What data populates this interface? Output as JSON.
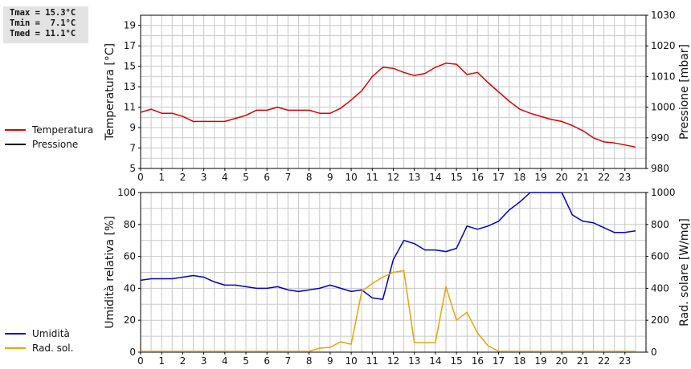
{
  "stats": {
    "tmax": "Tmax = 15.3°C",
    "tmin": "Tmin =  7.1°C",
    "tmed": "Tmed = 11.1°C"
  },
  "colors": {
    "temperatura": "#dd0000",
    "pressione": "#000000",
    "umidita": "#0000cc",
    "rad_sol": "#f0a000",
    "grid": "#c8c8c8"
  },
  "chart_data": [
    {
      "type": "line",
      "xlim": [
        0,
        24
      ],
      "x_ticks": [
        "0",
        "1",
        "2",
        "3",
        "4",
        "5",
        "6",
        "7",
        "8",
        "9",
        "10",
        "11",
        "12",
        "13",
        "14",
        "15",
        "16",
        "17",
        "18",
        "19",
        "20",
        "21",
        "22",
        "23"
      ],
      "ylabel": "Temperatura [°C]",
      "ylim": [
        5,
        20
      ],
      "y_ticks": [
        "5",
        "7",
        "9",
        "11",
        "13",
        "15",
        "17",
        "19"
      ],
      "y2label": "Pressione [mbar]",
      "y2lim": [
        980,
        1030
      ],
      "y2_ticks": [
        "980",
        "990",
        "1000",
        "1010",
        "1020",
        "1030"
      ],
      "grid": true,
      "legend_position": "left",
      "series": [
        {
          "name": "Temperatura",
          "axis": "left",
          "x": [
            0,
            0.5,
            1,
            1.5,
            2,
            2.5,
            3,
            3.5,
            4,
            4.5,
            5,
            5.5,
            6,
            6.5,
            7,
            7.5,
            8,
            8.5,
            9,
            9.5,
            10,
            10.5,
            11,
            11.5,
            12,
            12.5,
            13,
            13.5,
            14,
            14.5,
            15,
            15.5,
            16,
            16.5,
            17,
            17.5,
            18,
            18.5,
            19,
            19.5,
            20,
            20.5,
            21,
            21.5,
            22,
            22.5,
            23,
            23.5
          ],
          "y": [
            10.5,
            10.8,
            10.4,
            10.4,
            10.1,
            9.6,
            9.6,
            9.6,
            9.6,
            9.9,
            10.2,
            10.7,
            10.7,
            11.0,
            10.7,
            10.7,
            10.7,
            10.4,
            10.4,
            10.9,
            11.7,
            12.6,
            14.0,
            14.9,
            14.8,
            14.4,
            14.1,
            14.3,
            14.9,
            15.3,
            15.2,
            14.2,
            14.4,
            13.4,
            12.5,
            11.6,
            10.8,
            10.4,
            10.1,
            9.8,
            9.6,
            9.2,
            8.7,
            8.0,
            7.6,
            7.5,
            7.3,
            7.1
          ]
        },
        {
          "name": "Pressione",
          "axis": "right",
          "x": [],
          "y": []
        }
      ]
    },
    {
      "type": "line",
      "xlim": [
        0,
        24
      ],
      "x_ticks": [
        "0",
        "1",
        "2",
        "3",
        "4",
        "5",
        "6",
        "7",
        "8",
        "9",
        "10",
        "11",
        "12",
        "13",
        "14",
        "15",
        "16",
        "17",
        "18",
        "19",
        "20",
        "21",
        "22",
        "23"
      ],
      "ylabel": "Umidità relativa [%]",
      "ylim": [
        0,
        100
      ],
      "y_ticks": [
        "0",
        "20",
        "40",
        "60",
        "80",
        "100"
      ],
      "y2label": "Rad. solare [W/mq]",
      "y2lim": [
        0,
        1000
      ],
      "y2_ticks": [
        "0",
        "200",
        "400",
        "600",
        "800",
        "1000"
      ],
      "grid": true,
      "legend_position": "left",
      "series": [
        {
          "name": "Umidità",
          "axis": "left",
          "x": [
            0,
            0.5,
            1,
            1.5,
            2,
            2.5,
            3,
            3.5,
            4,
            4.5,
            5,
            5.5,
            6,
            6.5,
            7,
            7.5,
            8,
            8.5,
            9,
            9.5,
            10,
            10.5,
            11,
            11.5,
            12,
            12.5,
            13,
            13.5,
            14,
            14.5,
            15,
            15.5,
            16,
            16.5,
            17,
            17.5,
            18,
            18.5,
            19,
            19.5,
            20,
            20.5,
            21,
            21.5,
            22,
            22.5,
            23,
            23.5
          ],
          "y": [
            45,
            46,
            46,
            46,
            47,
            48,
            47,
            44,
            42,
            42,
            41,
            40,
            40,
            41,
            39,
            38,
            39,
            40,
            42,
            40,
            38,
            39,
            34,
            33,
            58,
            70,
            68,
            64,
            64,
            63,
            65,
            79,
            77,
            79,
            82,
            89,
            94,
            100,
            100,
            100,
            100,
            86,
            82,
            81,
            78,
            75,
            75,
            76
          ]
        },
        {
          "name": "Rad. sol.",
          "axis": "right",
          "x": [
            0,
            7,
            7.5,
            8,
            8.5,
            9,
            9.5,
            10,
            10.5,
            11,
            11.5,
            12,
            12.5,
            13,
            13.5,
            14,
            14.5,
            15,
            15.5,
            16,
            16.5,
            17,
            23.5
          ],
          "y": [
            5,
            5,
            5,
            5,
            25,
            30,
            65,
            50,
            380,
            430,
            470,
            500,
            510,
            60,
            60,
            60,
            410,
            200,
            250,
            120,
            40,
            5,
            5
          ]
        }
      ]
    }
  ]
}
